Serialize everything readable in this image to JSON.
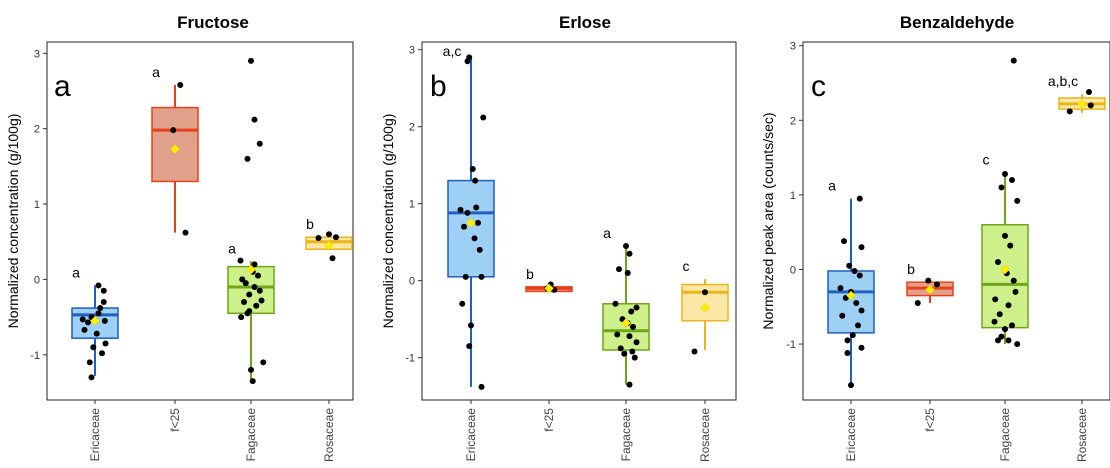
{
  "chart_data": [
    {
      "type": "box",
      "title": "Fructose",
      "panel_letter": "a",
      "ylabel": "Normalized concentration (g/100g)",
      "ylim": [
        -1.6,
        3.15
      ],
      "yticks": [
        -1,
        0,
        1,
        2,
        3
      ],
      "categories": [
        "Ericaceae",
        "f<25",
        "Fagaceae",
        "Rosaceae"
      ],
      "boxes": [
        {
          "category": "Ericaceae",
          "color": "#1f5fbf",
          "fill": "#9ecff5",
          "whisker_low": -1.28,
          "q1": -0.78,
          "median": -0.47,
          "q3": -0.38,
          "whisker_high": -0.08,
          "mean": -0.55,
          "sig_label": "a",
          "points": [
            [
              -0.2,
              -0.57
            ],
            [
              0.1,
              -0.45
            ],
            [
              -0.1,
              -0.5
            ],
            [
              0.15,
              -0.38
            ],
            [
              0.25,
              -0.3
            ],
            [
              -0.3,
              -0.67
            ],
            [
              0.05,
              -0.72
            ],
            [
              0.3,
              -0.85
            ],
            [
              -0.05,
              -0.9
            ],
            [
              0.2,
              -0.98
            ],
            [
              -0.15,
              -1.1
            ],
            [
              0.25,
              -0.15
            ],
            [
              0.1,
              -0.08
            ],
            [
              -0.1,
              -1.3
            ],
            [
              0.28,
              -0.55
            ],
            [
              -0.35,
              -0.53
            ]
          ]
        },
        {
          "category": "f<25",
          "color": "#e8401a",
          "fill": "#e0a08a",
          "whisker_low": 0.62,
          "q1": 1.3,
          "median": 1.98,
          "q3": 2.28,
          "whisker_high": 2.58,
          "mean": 1.73,
          "sig_label": "a",
          "points": [
            [
              -0.05,
              1.98
            ],
            [
              0.15,
              2.58
            ],
            [
              0.3,
              0.62
            ]
          ]
        },
        {
          "category": "Fagaceae",
          "color": "#6ea51a",
          "fill": "#cdf08a",
          "whisker_low": -1.35,
          "q1": -0.45,
          "median": -0.1,
          "q3": 0.17,
          "whisker_high": 0.24,
          "mean": 0.13,
          "sig_label": "a",
          "points": [
            [
              0.0,
              2.9
            ],
            [
              0.1,
              2.12
            ],
            [
              0.25,
              1.8
            ],
            [
              -0.1,
              1.6
            ],
            [
              -0.3,
              0.25
            ],
            [
              0.1,
              0.2
            ],
            [
              -0.25,
              0.0
            ],
            [
              0.05,
              0.1
            ],
            [
              0.2,
              0.05
            ],
            [
              -0.15,
              -0.05
            ],
            [
              0.1,
              -0.1
            ],
            [
              -0.05,
              -0.2
            ],
            [
              0.25,
              -0.15
            ],
            [
              -0.2,
              -0.3
            ],
            [
              0.15,
              -0.35
            ],
            [
              0.3,
              -0.28
            ],
            [
              -0.05,
              -0.42
            ],
            [
              0.0,
              -1.2
            ],
            [
              0.05,
              -1.35
            ],
            [
              0.35,
              -1.1
            ],
            [
              -0.28,
              -0.5
            ],
            [
              -0.1,
              -0.45
            ]
          ]
        },
        {
          "category": "Rosaceae",
          "color": "#ebb51a",
          "fill": "#fbe7a6",
          "whisker_low": 0.4,
          "q1": 0.4,
          "median": 0.5,
          "q3": 0.56,
          "whisker_high": 0.56,
          "mean": 0.45,
          "sig_label": "b",
          "points": [
            [
              -0.3,
              0.55
            ],
            [
              0.2,
              0.56
            ],
            [
              0.0,
              0.6
            ],
            [
              0.1,
              0.28
            ]
          ]
        }
      ]
    },
    {
      "type": "box",
      "title": "Erlose",
      "panel_letter": "b",
      "ylabel": "Normalized concentration (g/100g)",
      "ylim": [
        -1.55,
        3.1
      ],
      "yticks": [
        -1,
        0,
        1,
        2,
        3
      ],
      "categories": [
        "Ericaceae",
        "f<25",
        "Fagaceae",
        "Rosaceae"
      ],
      "boxes": [
        {
          "category": "Ericaceae",
          "color": "#1f5fbf",
          "fill": "#9ecff5",
          "whisker_low": -1.38,
          "q1": 0.05,
          "median": 0.88,
          "q3": 1.3,
          "whisker_high": 2.88,
          "mean": 0.75,
          "sig_label": "a,c",
          "points": [
            [
              -0.1,
              2.85
            ],
            [
              -0.05,
              2.9
            ],
            [
              0.35,
              2.12
            ],
            [
              0.05,
              1.45
            ],
            [
              0.12,
              1.3
            ],
            [
              -0.3,
              0.92
            ],
            [
              -0.1,
              0.88
            ],
            [
              0.2,
              0.75
            ],
            [
              0.1,
              0.55
            ],
            [
              0.25,
              0.4
            ],
            [
              -0.15,
              0.05
            ],
            [
              0.3,
              0.05
            ],
            [
              -0.25,
              -0.3
            ],
            [
              0.0,
              -0.58
            ],
            [
              -0.05,
              -0.85
            ],
            [
              0.3,
              -1.38
            ],
            [
              0.15,
              0.95
            ],
            [
              -0.2,
              0.7
            ]
          ]
        },
        {
          "category": "f<25",
          "color": "#e8401a",
          "fill": "#e0a08a",
          "whisker_low": -0.14,
          "q1": -0.14,
          "median": -0.1,
          "q3": -0.08,
          "whisker_high": -0.08,
          "mean": -0.1,
          "sig_label": "b",
          "points": [
            [
              -0.05,
              -0.1
            ],
            [
              0.05,
              -0.05
            ],
            [
              0.15,
              -0.12
            ]
          ]
        },
        {
          "category": "Fagaceae",
          "color": "#6ea51a",
          "fill": "#cdf08a",
          "whisker_low": -1.35,
          "q1": -0.9,
          "median": -0.65,
          "q3": -0.3,
          "whisker_high": 0.45,
          "mean": -0.55,
          "sig_label": "a",
          "points": [
            [
              0.0,
              0.45
            ],
            [
              0.1,
              0.35
            ],
            [
              -0.2,
              0.15
            ],
            [
              0.05,
              0.1
            ],
            [
              -0.3,
              -0.3
            ],
            [
              0.3,
              -0.35
            ],
            [
              0.15,
              -0.4
            ],
            [
              -0.1,
              -0.5
            ],
            [
              0.05,
              -0.55
            ],
            [
              0.2,
              -0.6
            ],
            [
              -0.25,
              -0.7
            ],
            [
              0.1,
              -0.72
            ],
            [
              0.3,
              -0.8
            ],
            [
              -0.15,
              -0.88
            ],
            [
              0.18,
              -0.92
            ],
            [
              -0.05,
              -0.95
            ],
            [
              0.25,
              -1.0
            ],
            [
              0.1,
              -1.35
            ]
          ]
        },
        {
          "category": "Rosaceae",
          "color": "#ebb51a",
          "fill": "#fbe7a6",
          "whisker_low": -0.9,
          "q1": -0.52,
          "median": -0.15,
          "q3": -0.05,
          "whisker_high": 0.02,
          "mean": -0.35,
          "sig_label": "c",
          "points": [
            [
              0.0,
              -0.15
            ],
            [
              -0.3,
              -0.92
            ]
          ]
        }
      ]
    },
    {
      "type": "box",
      "title": "Benzaldehyde",
      "panel_letter": "c",
      "ylabel": "Normalized peak area (counts/sec)",
      "ylim": [
        -1.75,
        3.05
      ],
      "yticks": [
        -1,
        0,
        1,
        2,
        3
      ],
      "categories": [
        "Ericaceae",
        "f<25",
        "Fagaceae",
        "Rosaceae"
      ],
      "boxes": [
        {
          "category": "Ericaceae",
          "color": "#1f5fbf",
          "fill": "#9ecff5",
          "whisker_low": -1.55,
          "q1": -0.85,
          "median": -0.3,
          "q3": -0.02,
          "whisker_high": 0.95,
          "mean": -0.35,
          "sig_label": "a",
          "points": [
            [
              -0.2,
              0.38
            ],
            [
              0.25,
              0.95
            ],
            [
              0.3,
              0.3
            ],
            [
              -0.05,
              0.05
            ],
            [
              0.1,
              -0.02
            ],
            [
              0.25,
              -0.08
            ],
            [
              -0.3,
              -0.25
            ],
            [
              0.0,
              -0.3
            ],
            [
              -0.15,
              -0.38
            ],
            [
              0.15,
              -0.45
            ],
            [
              0.3,
              -0.55
            ],
            [
              -0.25,
              -0.62
            ],
            [
              0.2,
              -0.75
            ],
            [
              0.05,
              -0.88
            ],
            [
              -0.1,
              -0.95
            ],
            [
              0.3,
              -1.05
            ],
            [
              -0.1,
              -1.12
            ],
            [
              0.0,
              -1.55
            ]
          ]
        },
        {
          "category": "f<25",
          "color": "#e8401a",
          "fill": "#e0a08a",
          "whisker_low": -0.45,
          "q1": -0.35,
          "median": -0.25,
          "q3": -0.17,
          "whisker_high": -0.17,
          "mean": -0.27,
          "sig_label": "b",
          "points": [
            [
              -0.05,
              -0.15
            ],
            [
              0.2,
              -0.2
            ],
            [
              -0.35,
              -0.45
            ]
          ]
        },
        {
          "category": "Fagaceae",
          "color": "#6ea51a",
          "fill": "#cdf08a",
          "whisker_low": -1.0,
          "q1": -0.78,
          "median": -0.2,
          "q3": 0.6,
          "whisker_high": 1.3,
          "mean": 0.0,
          "sig_label": "c",
          "points": [
            [
              0.25,
              2.8
            ],
            [
              0.0,
              1.28
            ],
            [
              0.2,
              1.2
            ],
            [
              -0.1,
              1.1
            ],
            [
              0.35,
              0.92
            ],
            [
              0.0,
              0.45
            ],
            [
              0.15,
              0.32
            ],
            [
              -0.2,
              0.1
            ],
            [
              0.05,
              -0.05
            ],
            [
              0.25,
              -0.15
            ],
            [
              0.3,
              -0.3
            ],
            [
              -0.28,
              -0.4
            ],
            [
              0.1,
              -0.48
            ],
            [
              -0.15,
              -0.6
            ],
            [
              -0.3,
              -0.7
            ],
            [
              0.2,
              -0.75
            ],
            [
              0.0,
              -0.8
            ],
            [
              -0.1,
              -0.9
            ],
            [
              0.35,
              -1.0
            ],
            [
              -0.2,
              -0.95
            ],
            [
              0.1,
              -0.95
            ]
          ]
        },
        {
          "category": "Rosaceae",
          "color": "#ebb51a",
          "fill": "#fbe7a6",
          "whisker_low": 2.1,
          "q1": 2.15,
          "median": 2.22,
          "q3": 2.3,
          "whisker_high": 2.35,
          "mean": 2.22,
          "sig_label": "a,b,c",
          "points": [
            [
              -0.35,
              2.12
            ],
            [
              0.2,
              2.38
            ],
            [
              0.25,
              2.2
            ]
          ]
        }
      ]
    }
  ]
}
